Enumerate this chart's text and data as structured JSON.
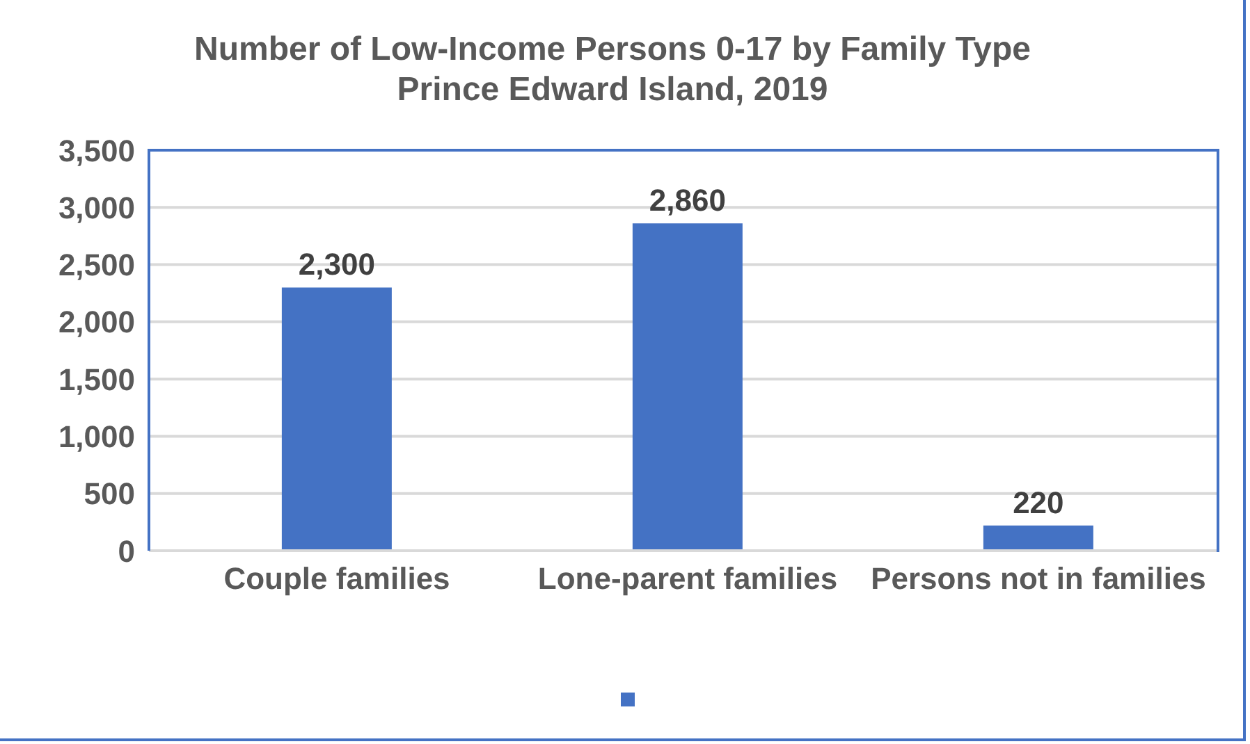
{
  "chart_data": {
    "type": "bar",
    "title": "Number of Low-Income Persons 0-17 by Family Type",
    "subtitle": "Prince Edward Island, 2019",
    "categories": [
      "Couple families",
      "Lone-parent families",
      "Persons not in families"
    ],
    "values": [
      2300,
      2860,
      220
    ],
    "color": "#4472c4",
    "value_labels": [
      "2,300",
      "2,860",
      "220"
    ],
    "ylim": [
      0,
      3500
    ],
    "yticks": [
      0,
      500,
      {
        "value": 1000,
        "label": "1,000"
      },
      {
        "value": 1500,
        "label": "1,500"
      },
      {
        "value": 2000,
        "label": "2,000"
      },
      {
        "value": 2500,
        "label": "2,500"
      },
      {
        "value": 3000,
        "label": "3,000"
      },
      {
        "value": 3500,
        "label": "3,500"
      }
    ],
    "grid": "y"
  }
}
